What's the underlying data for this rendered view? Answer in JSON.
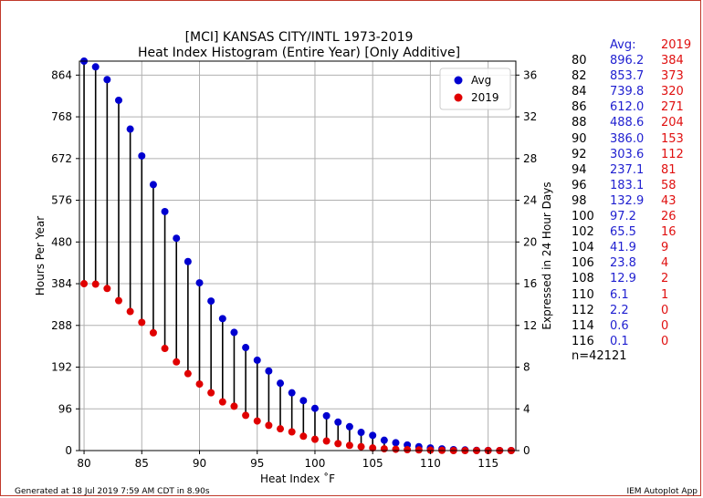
{
  "titles": {
    "line1": "[MCI] KANSAS CITY/INTL 1973-2019",
    "line2": "Heat Index Histogram (Entire Year) [Only Additive]"
  },
  "table": {
    "header_avg": "Avg:",
    "header_2019": "2019",
    "rows": [
      {
        "t": "80",
        "avg": "896.2",
        "y2019": "384"
      },
      {
        "t": "82",
        "avg": "853.7",
        "y2019": "373"
      },
      {
        "t": "84",
        "avg": "739.8",
        "y2019": "320"
      },
      {
        "t": "86",
        "avg": "612.0",
        "y2019": "271"
      },
      {
        "t": "88",
        "avg": "488.6",
        "y2019": "204"
      },
      {
        "t": "90",
        "avg": "386.0",
        "y2019": "153"
      },
      {
        "t": "92",
        "avg": "303.6",
        "y2019": "112"
      },
      {
        "t": "94",
        "avg": "237.1",
        "y2019": "81"
      },
      {
        "t": "96",
        "avg": "183.1",
        "y2019": "58"
      },
      {
        "t": "98",
        "avg": "132.9",
        "y2019": "43"
      },
      {
        "t": "100",
        "avg": "97.2",
        "y2019": "26"
      },
      {
        "t": "102",
        "avg": "65.5",
        "y2019": "16"
      },
      {
        "t": "104",
        "avg": "41.9",
        "y2019": "9"
      },
      {
        "t": "106",
        "avg": "23.8",
        "y2019": "4"
      },
      {
        "t": "108",
        "avg": "12.9",
        "y2019": "2"
      },
      {
        "t": "110",
        "avg": "6.1",
        "y2019": "1"
      },
      {
        "t": "112",
        "avg": "2.2",
        "y2019": "0"
      },
      {
        "t": "114",
        "avg": "0.6",
        "y2019": "0"
      },
      {
        "t": "116",
        "avg": "0.1",
        "y2019": "0"
      }
    ],
    "n_label": "n=42121"
  },
  "footer": {
    "left": "Generated at 18 Jul 2019 7:59 AM CDT in 8.90s",
    "right": "IEM Autoplot App"
  },
  "chart_data": {
    "type": "scatter",
    "xlabel": "Heat Index ˚F",
    "ylabel": "Hours Per Year",
    "y2label": "Expressed in 24 Hour Days",
    "xlim": [
      79.6,
      117.4
    ],
    "ylim": [
      0,
      896.2
    ],
    "y2lim": [
      0,
      37.34
    ],
    "xticks": [
      80,
      85,
      90,
      95,
      100,
      105,
      110,
      115
    ],
    "yticks": [
      0,
      96,
      192,
      288,
      384,
      480,
      576,
      672,
      768,
      864
    ],
    "y2ticks": [
      0,
      4,
      8,
      12,
      16,
      20,
      24,
      28,
      32,
      36
    ],
    "grid": true,
    "legend_position": "top-right",
    "series": [
      {
        "name": "Avg",
        "color": "#0000d0",
        "x": [
          80,
          81,
          82,
          83,
          84,
          85,
          86,
          87,
          88,
          89,
          90,
          91,
          92,
          93,
          94,
          95,
          96,
          97,
          98,
          99,
          100,
          101,
          102,
          103,
          104,
          105,
          106,
          107,
          108,
          109,
          110,
          111,
          112,
          113,
          114,
          115,
          116,
          117
        ],
        "values": [
          896.2,
          883,
          853.7,
          806,
          739.8,
          678,
          612.0,
          550,
          488.6,
          435,
          386.0,
          344,
          303.6,
          272,
          237.1,
          208,
          183.1,
          155,
          132.9,
          115,
          97.2,
          80,
          65.5,
          55,
          41.9,
          35,
          23.8,
          18,
          12.9,
          9,
          6.1,
          4,
          2.2,
          1.5,
          0.6,
          0.3,
          0.1,
          0.05
        ]
      },
      {
        "name": "2019",
        "color": "#e00000",
        "x": [
          80,
          81,
          82,
          83,
          84,
          85,
          86,
          87,
          88,
          89,
          90,
          91,
          92,
          93,
          94,
          95,
          96,
          97,
          98,
          99,
          100,
          101,
          102,
          103,
          104,
          105,
          106,
          107,
          108,
          109,
          110,
          111,
          112,
          113,
          114,
          115,
          116,
          117
        ],
        "values": [
          384,
          383,
          373,
          345,
          320,
          295,
          271,
          235,
          204,
          177,
          153,
          133,
          112,
          102,
          81,
          68,
          58,
          50,
          43,
          33,
          26,
          22,
          16,
          12,
          9,
          6,
          4,
          3,
          2,
          1.5,
          1,
          0.5,
          0,
          0,
          0,
          0,
          0,
          0
        ]
      }
    ]
  }
}
